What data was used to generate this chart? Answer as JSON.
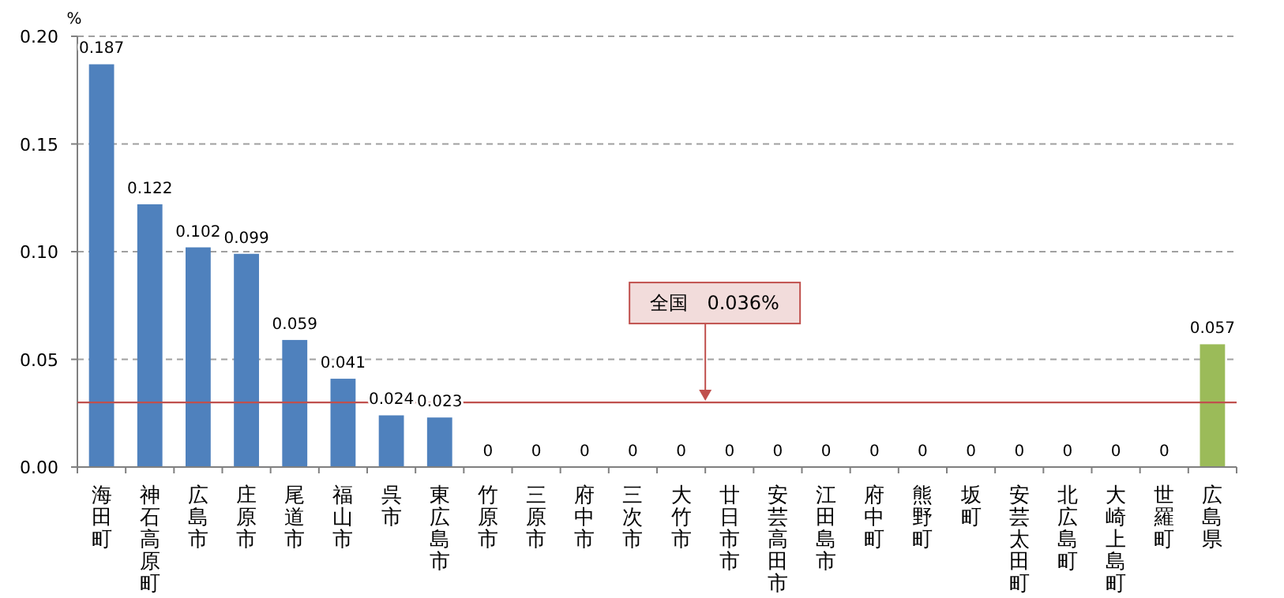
{
  "chart_data": {
    "type": "bar",
    "ylabel": "%",
    "categories": [
      "海田町",
      "神石高原町",
      "広島市",
      "庄原市",
      "尾道市",
      "福山市",
      "呉市",
      "東広島市",
      "竹原市",
      "三原市",
      "府中市",
      "三次市",
      "大竹市",
      "廿日市市",
      "安芸高田市",
      "江田島市",
      "府中町",
      "熊野町",
      "坂町",
      "安芸太田町",
      "北広島町",
      "大崎上島町",
      "世羅町",
      "広島県"
    ],
    "values": [
      0.187,
      0.122,
      0.102,
      0.099,
      0.059,
      0.041,
      0.024,
      0.023,
      0,
      0,
      0,
      0,
      0,
      0,
      0,
      0,
      0,
      0,
      0,
      0,
      0,
      0,
      0,
      0.057
    ],
    "colors": [
      "#4f81bd",
      "#4f81bd",
      "#4f81bd",
      "#4f81bd",
      "#4f81bd",
      "#4f81bd",
      "#4f81bd",
      "#4f81bd",
      "#4f81bd",
      "#4f81bd",
      "#4f81bd",
      "#4f81bd",
      "#4f81bd",
      "#4f81bd",
      "#4f81bd",
      "#4f81bd",
      "#4f81bd",
      "#4f81bd",
      "#4f81bd",
      "#4f81bd",
      "#4f81bd",
      "#4f81bd",
      "#4f81bd",
      "#9bbb59"
    ],
    "ylim": [
      0,
      0.2
    ],
    "yticks": [
      {
        "value": 0,
        "label": "0.00"
      },
      {
        "value": 0.05,
        "label": "0.05"
      },
      {
        "value": 0.1,
        "label": "0.10"
      },
      {
        "value": 0.15,
        "label": "0.15"
      },
      {
        "value": 0.2,
        "label": "0.20"
      }
    ],
    "grid": "y",
    "data_labels": true,
    "ref_lines": [
      {
        "axis": "y",
        "value": 0.03,
        "label": "全国　0.036%",
        "color": "#c0504d"
      }
    ]
  }
}
